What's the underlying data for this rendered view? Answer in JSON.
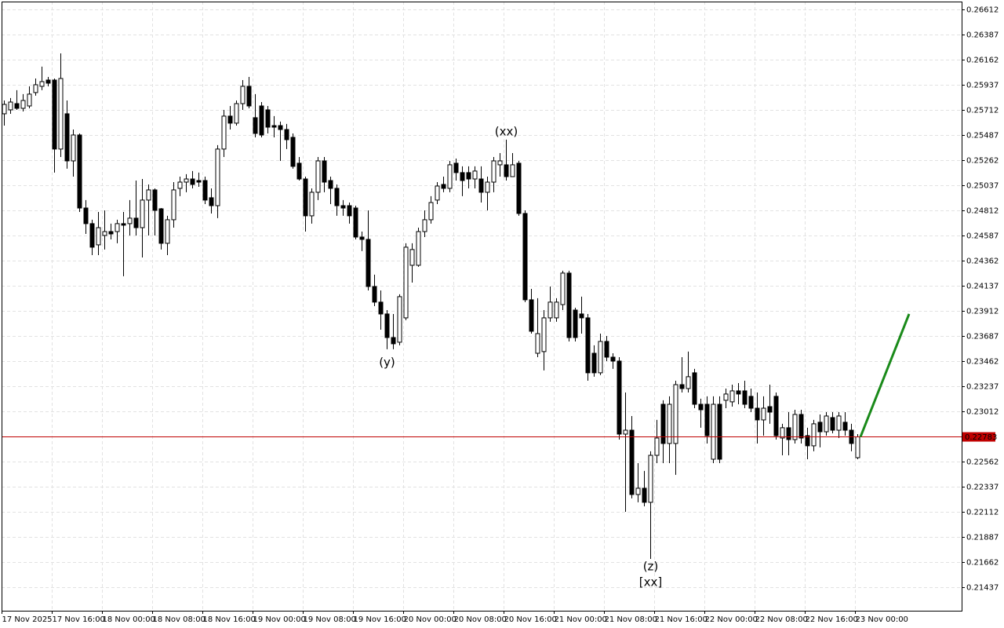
{
  "chart_data": {
    "type": "candlestick",
    "up_color": "#ffffff",
    "down_color": "#000000",
    "wick_color": "#000000",
    "grid": true,
    "categories": [
      "17 Nov 2025",
      null,
      null,
      null,
      null,
      null,
      null,
      null,
      "17 Nov 16:00",
      null,
      null,
      null,
      null,
      null,
      null,
      null,
      "18 Nov 00:00",
      null,
      null,
      null,
      null,
      null,
      null,
      null,
      "18 Nov 08:00",
      null,
      null,
      null,
      null,
      null,
      null,
      null,
      "18 Nov 16:00",
      null,
      null,
      null,
      null,
      null,
      null,
      null,
      "19 Nov 00:00",
      null,
      null,
      null,
      null,
      null,
      null,
      null,
      "19 Nov 08:00",
      null,
      null,
      null,
      null,
      null,
      null,
      null,
      "19 Nov 16:00",
      null,
      null,
      null,
      null,
      null,
      null,
      null,
      "20 Nov 00:00",
      null,
      null,
      null,
      null,
      null,
      null,
      null,
      "20 Nov 08:00",
      null,
      null,
      null,
      null,
      null,
      null,
      null,
      "20 Nov 16:00",
      null,
      null,
      null,
      null,
      null,
      null,
      null,
      "21 Nov 00:00",
      null,
      null,
      null,
      null,
      null,
      null,
      null,
      "21 Nov 08:00",
      null,
      null,
      null,
      null,
      null,
      null,
      null,
      "21 Nov 16:00",
      null,
      null,
      null,
      null,
      null,
      null,
      null,
      "22 Nov 00:00",
      null,
      null,
      null,
      null,
      null,
      null,
      null,
      "22 Nov 08:00",
      null,
      null,
      null,
      null,
      null,
      null,
      null,
      "22 Nov 16:00",
      null,
      null,
      null,
      null,
      null,
      null,
      null,
      "23 Nov 00:00"
    ],
    "open": [
      0.25677,
      0.25712,
      0.25768,
      0.25726,
      0.25747,
      0.25867,
      0.25923,
      0.25979,
      0.25979,
      0.25361,
      0.25677,
      0.25255,
      0.25487,
      0.24833,
      0.24693,
      0.24503,
      0.24587,
      0.24622,
      0.24622,
      0.24693,
      0.24693,
      0.24742,
      0.24657,
      0.24904,
      0.24995,
      0.24826,
      0.24517,
      0.24728,
      0.25009,
      0.25065,
      0.25093,
      0.25079,
      0.25079,
      0.24925,
      0.24854,
      0.25361,
      0.25656,
      0.25593,
      0.25768,
      0.25923,
      0.25642,
      0.25747,
      0.25712,
      0.25571,
      0.25571,
      0.25536,
      0.25466,
      0.25234,
      0.25093,
      0.24763,
      0.24974,
      0.25255,
      0.25079,
      0.25009,
      0.24854,
      0.24854,
      0.24833,
      0.24573,
      0.24552,
      0.2413,
      0.2399,
      0.23884,
      0.23673,
      0.23631,
      0.23849,
      0.2432,
      0.2432,
      0.24622,
      0.24728,
      0.24904,
      0.25044,
      0.25009,
      0.25234,
      0.2515,
      0.2515,
      0.25093,
      0.25093,
      0.24974,
      0.25065,
      0.2522,
      0.2522,
      0.25114,
      0.25234,
      0.24784,
      0.24011,
      0.23532,
      0.23547,
      0.23849,
      0.23849,
      0.23968,
      0.2425,
      0.23919,
      0.23884,
      0.23849,
      0.23532,
      0.23357,
      0.23638,
      0.23497,
      0.23462,
      0.22808,
      0.22843,
      0.22267,
      0.22323,
      0.22197,
      0.22618,
      0.23075,
      0.22724,
      0.22724,
      0.23251,
      0.23216,
      0.23357,
      0.23075,
      0.23075,
      0.22583,
      0.23075,
      0.23111,
      0.23097,
      0.23195,
      0.23195,
      0.23146,
      0.2304,
      0.22935,
      0.23054,
      0.23146,
      0.22773,
      0.22865,
      0.22759,
      0.22984,
      0.22794,
      0.22703,
      0.22914,
      0.22829,
      0.22956,
      0.22843,
      0.22914,
      0.22843,
      0.22597
    ],
    "high": [
      0.25796,
      0.25818,
      0.25888,
      0.25853,
      0.25923,
      0.25993,
      0.26099,
      0.26007,
      0.25993,
      0.26218,
      0.25796,
      0.25536,
      0.25501,
      0.24904,
      0.24728,
      0.24798,
      0.24812,
      0.24693,
      0.24728,
      0.24798,
      0.24904,
      0.25079,
      0.25093,
      0.25044,
      0.25009,
      0.24833,
      0.24763,
      0.25065,
      0.25114,
      0.25136,
      0.25164,
      0.2515,
      0.25114,
      0.25009,
      0.25396,
      0.25712,
      0.25747,
      0.25796,
      0.25979,
      0.26007,
      0.25853,
      0.25782,
      0.25747,
      0.25656,
      0.25607,
      0.25586,
      0.25501,
      0.2529,
      0.25114,
      0.25009,
      0.2529,
      0.2529,
      0.25114,
      0.25044,
      0.24904,
      0.24882,
      0.24854,
      0.24622,
      0.24812,
      0.24236,
      0.24095,
      0.23919,
      0.23884,
      0.2406,
      0.24517,
      0.24517,
      0.24657,
      0.24812,
      0.24939,
      0.25065,
      0.25114,
      0.25255,
      0.25276,
      0.25206,
      0.25206,
      0.25206,
      0.25206,
      0.25114,
      0.2529,
      0.25325,
      0.25445,
      0.25325,
      0.25255,
      0.24812,
      0.24109,
      0.24025,
      0.23919,
      0.2413,
      0.24025,
      0.24271,
      0.24271,
      0.2394,
      0.24039,
      0.23884,
      0.23603,
      0.23708,
      0.23687,
      0.23532,
      0.23497,
      0.23181,
      0.2297,
      0.22548,
      0.22478,
      0.22654,
      0.22935,
      0.23111,
      0.23146,
      0.23286,
      0.23497,
      0.23547,
      0.23392,
      0.23125,
      0.23146,
      0.23146,
      0.23146,
      0.23216,
      0.23251,
      0.23265,
      0.23286,
      0.23216,
      0.23181,
      0.23146,
      0.23251,
      0.23181,
      0.229,
      0.23005,
      0.23026,
      0.23026,
      0.22865,
      0.22935,
      0.22984,
      0.23005,
      0.23005,
      0.23005,
      0.23005,
      0.229,
      0.22808
    ],
    "low": [
      0.25571,
      0.25677,
      0.25712,
      0.25698,
      0.25726,
      0.25839,
      0.25888,
      0.25923,
      0.2515,
      0.2529,
      0.25185,
      0.25114,
      0.24798,
      0.24601,
      0.24411,
      0.24411,
      0.24461,
      0.24552,
      0.24517,
      0.24222,
      0.24587,
      0.24587,
      0.2439,
      0.24587,
      0.24587,
      0.24461,
      0.24411,
      0.24657,
      0.24939,
      0.24974,
      0.25009,
      0.25023,
      0.24868,
      0.24784,
      0.24742,
      0.2529,
      0.25536,
      0.25571,
      0.25712,
      0.25726,
      0.25466,
      0.25466,
      0.25501,
      0.25466,
      0.25255,
      0.25361,
      0.25185,
      0.25079,
      0.24622,
      0.24693,
      0.24904,
      0.24974,
      0.24868,
      0.24763,
      0.24763,
      0.24693,
      0.24552,
      0.24447,
      0.24095,
      0.23954,
      0.23743,
      0.23568,
      0.23568,
      0.23603,
      0.23828,
      0.24165,
      0.24306,
      0.24573,
      0.24693,
      0.24868,
      0.24974,
      0.24974,
      0.25079,
      0.24939,
      0.25009,
      0.25009,
      0.24882,
      0.24812,
      0.24974,
      0.25114,
      0.25079,
      0.25114,
      0.24763,
      0.2399,
      0.23708,
      0.23497,
      0.23378,
      0.23814,
      0.23814,
      0.23919,
      0.23638,
      0.23638,
      0.23708,
      0.23286,
      0.23322,
      0.23336,
      0.23462,
      0.23392,
      0.22759,
      0.22112,
      0.22232,
      0.22197,
      0.22161,
      0.2169,
      0.22548,
      0.22548,
      0.22548,
      0.22443,
      0.23181,
      0.23181,
      0.2304,
      0.22865,
      0.22724,
      0.22548,
      0.22548,
      0.2304,
      0.23054,
      0.23075,
      0.2304,
      0.23005,
      0.22724,
      0.22794,
      0.229,
      0.22759,
      0.22618,
      0.22618,
      0.22724,
      0.22724,
      0.22583,
      0.22654,
      0.22689,
      0.22794,
      0.22815,
      0.22773,
      0.22794,
      0.22654,
      0.22583
    ],
    "close": [
      0.25761,
      0.25782,
      0.25726,
      0.25796,
      0.25853,
      0.25937,
      0.25965,
      0.25951,
      0.25361,
      0.25993,
      0.25255,
      0.25487,
      0.24833,
      0.24693,
      0.24482,
      0.24657,
      0.24622,
      0.24601,
      0.24693,
      0.24679,
      0.24742,
      0.24657,
      0.24904,
      0.24995,
      0.24812,
      0.24517,
      0.24728,
      0.24995,
      0.25065,
      0.25093,
      0.25044,
      0.25065,
      0.24904,
      0.24854,
      0.25361,
      0.25656,
      0.25593,
      0.25768,
      0.25923,
      0.25747,
      0.25501,
      0.25487,
      0.25557,
      0.25557,
      0.25536,
      0.25445,
      0.25206,
      0.25093,
      0.24763,
      0.24974,
      0.25255,
      0.25065,
      0.25009,
      0.24854,
      0.24833,
      0.24763,
      0.24573,
      0.24552,
      0.2413,
      0.2399,
      0.23884,
      0.23673,
      0.23617,
      0.24039,
      0.24482,
      0.24461,
      0.24622,
      0.24728,
      0.24882,
      0.2503,
      0.25009,
      0.2522,
      0.2515,
      0.25079,
      0.25093,
      0.25164,
      0.24974,
      0.25065,
      0.25255,
      0.25255,
      0.25114,
      0.2522,
      0.24784,
      0.24011,
      0.23729,
      0.23708,
      0.23849,
      0.2399,
      0.2399,
      0.2425,
      0.23673,
      0.23673,
      0.23849,
      0.23357,
      0.23357,
      0.23638,
      0.23497,
      0.23462,
      0.22808,
      0.22843,
      0.22267,
      0.22323,
      0.22197,
      0.22618,
      0.22773,
      0.22724,
      0.23075,
      0.23251,
      0.23216,
      0.23322,
      0.23075,
      0.23026,
      0.22794,
      0.23075,
      0.22583,
      0.23167,
      0.23195,
      0.23167,
      0.23075,
      0.2304,
      0.22935,
      0.2304,
      0.23005,
      0.22794,
      0.22865,
      0.22759,
      0.22984,
      0.22773,
      0.22703,
      0.229,
      0.22829,
      0.2297,
      0.22843,
      0.2297,
      0.22843,
      0.22724,
      0.22783
    ],
    "ylim": [
      0.21226,
      0.26682
    ],
    "yticks": [
      0.26612,
      0.26387,
      0.26162,
      0.25937,
      0.25712,
      0.25487,
      0.25262,
      0.25037,
      0.24812,
      0.24587,
      0.24362,
      0.24137,
      0.23912,
      0.23687,
      0.23462,
      0.23237,
      0.23012,
      0.22562,
      0.22337,
      0.22112,
      0.21887,
      0.21662,
      0.21437
    ],
    "last_price": 0.22783,
    "last_price_color": "#c00000",
    "projection": {
      "start": 0.22783,
      "end": 0.23884,
      "color": "#1a8a1a"
    },
    "annotations": [
      {
        "text": "(xx)",
        "color": "#2323d8"
      },
      {
        "text": "(y)",
        "color": "#2323d8"
      },
      {
        "text": "(z)",
        "color": "#2323d8"
      },
      {
        "text": "[xx]",
        "color": "#3cc43c"
      }
    ]
  }
}
